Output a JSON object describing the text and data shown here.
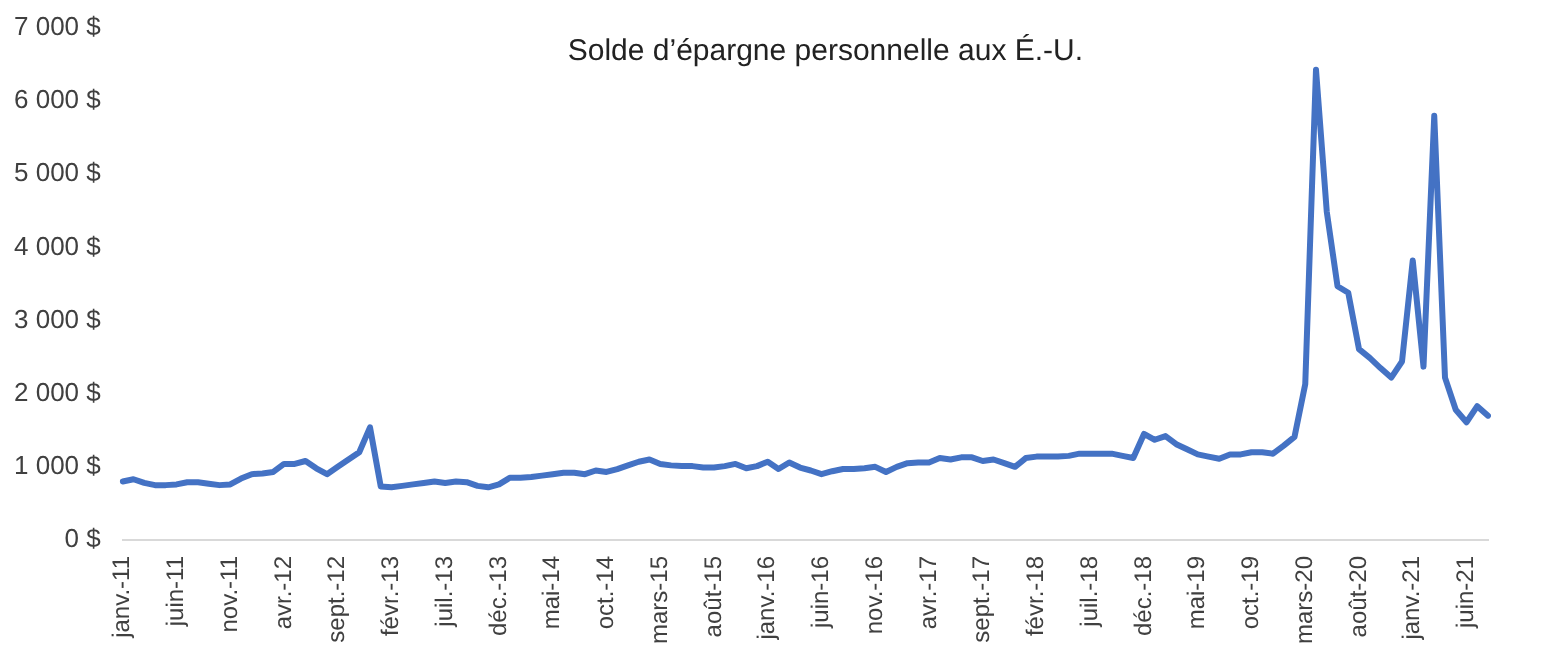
{
  "chart_data": {
    "type": "line",
    "title": "Solde d’épargne personnelle aux É.-U.",
    "categories": [
      "janv.-11",
      null,
      null,
      null,
      null,
      "juin-11",
      null,
      null,
      null,
      null,
      "nov.-11",
      null,
      null,
      null,
      null,
      "avr.-12",
      null,
      null,
      null,
      null,
      "sept.-12",
      null,
      null,
      null,
      null,
      "févr.-13",
      null,
      null,
      null,
      null,
      "juil.-13",
      null,
      null,
      null,
      null,
      "déc.-13",
      null,
      null,
      null,
      null,
      "mai-14",
      null,
      null,
      null,
      null,
      "oct.-14",
      null,
      null,
      null,
      null,
      "mars-15",
      null,
      null,
      null,
      null,
      "août-15",
      null,
      null,
      null,
      null,
      "janv.-16",
      null,
      null,
      null,
      null,
      "juin-16",
      null,
      null,
      null,
      null,
      "nov.-16",
      null,
      null,
      null,
      null,
      "avr.-17",
      null,
      null,
      null,
      null,
      "sept.-17",
      null,
      null,
      null,
      null,
      "févr.-18",
      null,
      null,
      null,
      null,
      "juil.-18",
      null,
      null,
      null,
      null,
      "déc.-18",
      null,
      null,
      null,
      null,
      "mai-19",
      null,
      null,
      null,
      null,
      "oct.-19",
      null,
      null,
      null,
      null,
      "mars-20",
      null,
      null,
      null,
      null,
      "août-20",
      null,
      null,
      null,
      null,
      "janv.-21",
      null,
      null,
      null,
      null,
      "juin-21",
      null,
      null
    ],
    "series": [
      {
        "color": "#4472c4",
        "values": [
          800,
          830,
          780,
          750,
          750,
          760,
          790,
          790,
          770,
          750,
          760,
          840,
          900,
          910,
          930,
          1040,
          1040,
          1080,
          980,
          900,
          1000,
          1100,
          1200,
          1540,
          730,
          720,
          740,
          760,
          780,
          800,
          780,
          800,
          790,
          740,
          720,
          760,
          850,
          850,
          860,
          880,
          900,
          920,
          920,
          900,
          950,
          930,
          970,
          1020,
          1070,
          1100,
          1040,
          1020,
          1010,
          1010,
          990,
          990,
          1010,
          1040,
          980,
          1010,
          1070,
          970,
          1060,
          990,
          950,
          900,
          940,
          970,
          970,
          980,
          1000,
          930,
          1000,
          1050,
          1060,
          1060,
          1120,
          1100,
          1130,
          1130,
          1080,
          1100,
          1050,
          1000,
          1120,
          1140,
          1140,
          1140,
          1150,
          1180,
          1180,
          1180,
          1180,
          1150,
          1120,
          1450,
          1370,
          1420,
          1310,
          1240,
          1170,
          1140,
          1110,
          1170,
          1170,
          1200,
          1200,
          1180,
          1290,
          1410,
          2130,
          6430,
          4490,
          3470,
          3380,
          2610,
          2490,
          2350,
          2220,
          2440,
          3820,
          2370,
          5800,
          2220,
          1780,
          1610,
          1830,
          1700
        ]
      }
    ],
    "ylim": [
      0,
      7000
    ],
    "yticks": [
      {
        "value": 0,
        "label": "0 $"
      },
      {
        "value": 1000,
        "label": "1 000 $"
      },
      {
        "value": 2000,
        "label": "2 000 $"
      },
      {
        "value": 3000,
        "label": "3 000 $"
      },
      {
        "value": 4000,
        "label": "4 000 $"
      },
      {
        "value": 5000,
        "label": "5 000 $"
      },
      {
        "value": 6000,
        "label": "6 000 $"
      },
      {
        "value": 7000,
        "label": "7 000 $"
      }
    ],
    "grid": false,
    "legend": false,
    "marker": "none",
    "line_style": "solid"
  }
}
